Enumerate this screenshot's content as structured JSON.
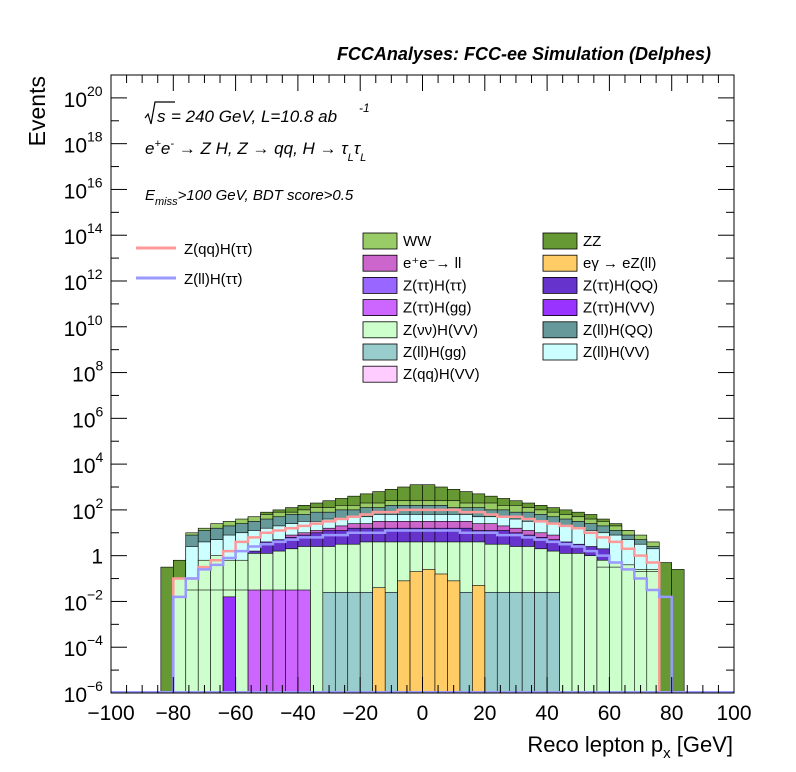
{
  "header": {
    "title": "FCCAnalyses: FCC-ee Simulation (Delphes)"
  },
  "chart_data": {
    "type": "histogram",
    "title": "FCCAnalyses: FCC-ee Simulation (Delphes)",
    "xlabel": "Reco lepton p",
    "xlabel_sub": "x",
    "xlabel_unit": "[GeV]",
    "ylabel": "Events",
    "xlim": [
      -100,
      100
    ],
    "ylim_log10": [
      -6,
      21
    ],
    "y_scale": "log",
    "x_ticks": [
      "−100",
      "−80",
      "−60",
      "−40",
      "−20",
      "0",
      "20",
      "40",
      "60",
      "80",
      "100"
    ],
    "y_ticks": [
      {
        "exp": -6,
        "base": "10",
        "sup": "−6"
      },
      {
        "exp": -4,
        "base": "10",
        "sup": "−4"
      },
      {
        "exp": -2,
        "base": "10",
        "sup": "−2"
      },
      {
        "exp": 0,
        "base": "1",
        "sup": ""
      },
      {
        "exp": 2,
        "base": "10",
        "sup": "2"
      },
      {
        "exp": 4,
        "base": "10",
        "sup": "4"
      },
      {
        "exp": 6,
        "base": "10",
        "sup": "6"
      },
      {
        "exp": 8,
        "base": "10",
        "sup": "8"
      },
      {
        "exp": 10,
        "base": "10",
        "sup": "10"
      },
      {
        "exp": 12,
        "base": "10",
        "sup": "12"
      },
      {
        "exp": 14,
        "base": "10",
        "sup": "14"
      },
      {
        "exp": 16,
        "base": "10",
        "sup": "16"
      },
      {
        "exp": 18,
        "base": "10",
        "sup": "18"
      },
      {
        "exp": 20,
        "base": "10",
        "sup": "20"
      }
    ],
    "annotations": {
      "energy": "= 240 GeV, L=10.8 ab",
      "energy_sup": "-1",
      "process_parts": [
        "e",
        "+",
        "e",
        "-",
        " → Z H, Z  → qq, H  → τ",
        "L",
        "τ",
        "L"
      ],
      "cut_parts": [
        "E",
        "miss",
        ">100 GeV, BDT score>0.5"
      ]
    },
    "bin_width": 4,
    "x_bins": [
      -84,
      -80,
      -76,
      -72,
      -68,
      -64,
      -60,
      -56,
      -52,
      -48,
      -44,
      -40,
      -36,
      -32,
      -28,
      -24,
      -20,
      -16,
      -12,
      -8,
      -4,
      0,
      4,
      8,
      12,
      16,
      20,
      24,
      28,
      32,
      36,
      40,
      44,
      48,
      52,
      56,
      60,
      64,
      68,
      72,
      76,
      80,
      84
    ],
    "stack_log10": [
      {
        "name": "Z(qq)H(VV)",
        "color": "#ffccff",
        "values": [
          -7,
          -7,
          -7,
          -7,
          -7,
          -7,
          -7,
          -7,
          -7,
          -7,
          -7,
          -7,
          -7,
          -7,
          -7,
          -7,
          -7,
          -7,
          -7,
          -7,
          -7,
          -7,
          -7,
          -7,
          -7,
          -7,
          -7,
          -7,
          -7,
          -7,
          -7,
          -7,
          -7,
          -7,
          -7,
          -7,
          -7,
          -7,
          -7,
          -1.8,
          -7,
          -7
        ]
      },
      {
        "name": "Z(ll)H(gg)",
        "color": "#99cccc",
        "values": [
          -7,
          -7,
          -7,
          -7,
          -7,
          -7,
          -7,
          -7,
          -7,
          -7,
          -7,
          -7,
          -7,
          -1.6,
          -1.6,
          -1.6,
          -1.6,
          -1.6,
          -1.6,
          -1.6,
          -1.6,
          -1.6,
          -1.6,
          -1.6,
          -1.6,
          -1.6,
          -1.6,
          -1.6,
          -1.6,
          -1.6,
          -1.6,
          -1.6,
          -7,
          -7,
          -7,
          -7,
          -7,
          -7,
          -7,
          -7,
          -7,
          -7
        ]
      },
      {
        "name": "eγ → eZ(ll)",
        "color": "#ffcc66",
        "values": [
          -7,
          -7,
          -7,
          -7,
          -7,
          -7,
          -7,
          -7,
          -7,
          -7,
          -7,
          -7,
          -7,
          -7,
          -7,
          -7,
          -7,
          -1.4,
          -7,
          -1.1,
          -0.7,
          -0.6,
          -0.8,
          -1.1,
          -7,
          -1.3,
          -7,
          -7,
          -7,
          -7,
          -7,
          -7,
          -7,
          -7,
          -7,
          -7,
          -7,
          -7,
          -7,
          -7,
          -7,
          -7
        ]
      },
      {
        "name": "Z(νν)H(VV)",
        "color": "#ccffcc",
        "values": [
          -7,
          -7,
          -1.5,
          -1.5,
          -1.5,
          -1.5,
          -1.5,
          -7,
          -7,
          -7,
          -7,
          -7,
          -7,
          -7,
          -7,
          -7,
          -7,
          -7,
          -7,
          -7,
          -7,
          -7,
          -7,
          -7,
          -7,
          -7,
          -7,
          -7,
          -7,
          -7,
          -7,
          -7,
          -7,
          -7,
          -7,
          -0.5,
          -0.5,
          -0.6,
          -0.7,
          -0.7,
          -7,
          -7
        ]
      },
      {
        "name": "Z(ττ)H(VV)",
        "color": "#9933ff",
        "values": [
          -7,
          -7,
          -7,
          -7,
          -7,
          -1.8,
          -7,
          -7,
          -7,
          -7,
          -7,
          -7,
          -7,
          -7,
          -7,
          -7,
          -7,
          -7,
          -7,
          -7,
          -7,
          -7,
          -7,
          -7,
          -7,
          -7,
          -7,
          -7,
          -7,
          -7,
          -7,
          -7,
          -7,
          -7,
          -7,
          -7,
          -7,
          -7,
          -7,
          -7,
          -7,
          -7
        ]
      },
      {
        "name": "Z(ττ)H(gg)",
        "color": "#cc66ff",
        "values": [
          -7,
          -7,
          -7,
          -7,
          -7,
          -7,
          -7,
          -1.5,
          -1.5,
          -1.5,
          -1.5,
          -1.5,
          -7,
          -7,
          -7,
          -7,
          -7,
          -7,
          -7,
          -7,
          -7,
          -7,
          -7,
          -7,
          -7,
          -7,
          -7,
          -7,
          -7,
          -7,
          -7,
          -7,
          -7,
          -7,
          -7,
          -7,
          -7,
          -7,
          -7,
          -7,
          -7,
          -7
        ]
      },
      {
        "name": "Z(ττ)H(QQ)",
        "color": "#6633cc",
        "values": [
          -7,
          -7,
          -7,
          -7,
          -7,
          -7,
          -7,
          -7,
          -7,
          -7,
          -7,
          -7,
          -7,
          -7,
          -7,
          -7,
          -7,
          -7,
          -7,
          -7,
          -7,
          -7,
          -7,
          -7,
          -7,
          -7,
          -7,
          -7,
          -7,
          -7,
          -7,
          -7,
          -7,
          -7,
          -7,
          -7,
          -7,
          -7,
          -7,
          -7,
          -7,
          -7
        ]
      },
      {
        "name": "e⁺e⁻→ ll",
        "color": "#cc66cc",
        "values": [
          -7,
          -7,
          -7,
          -7,
          -7,
          -7,
          -7,
          -7,
          -7,
          -7,
          -7,
          -7,
          -7,
          -7,
          -7,
          -7,
          -7,
          -7,
          -7,
          -7,
          -7,
          -7,
          -7,
          -7,
          -7,
          -7,
          -7,
          -7,
          -7,
          -7,
          -7,
          -7,
          -7,
          -7,
          -7,
          -7,
          -7,
          -7,
          -7,
          -7,
          -7,
          -7
        ]
      },
      {
        "name": "Z(ll)H(VV)",
        "color": "#ccffff",
        "values": [
          -7,
          -7,
          -7,
          -7,
          -7,
          -7,
          -7,
          -7,
          -7,
          -7,
          -7,
          -7,
          -7,
          -7,
          -7,
          -7,
          -7,
          -7,
          -7,
          -7,
          -7,
          -7,
          -7,
          -7,
          -7,
          -7,
          -7,
          -7,
          -7,
          -7,
          -7,
          -7,
          -7,
          -7,
          -7,
          -7,
          -7,
          -7,
          -7,
          -7,
          -7,
          -7
        ]
      },
      {
        "name": "Z(ττ)H(ττ)",
        "color": "#9966ff",
        "values": [
          -7,
          -7,
          -7,
          -7,
          -7,
          -7,
          -7,
          -7,
          -7,
          -7,
          -7,
          -7,
          -7,
          -7,
          -7,
          -7,
          -7,
          -7,
          -7,
          -7,
          -7,
          -7,
          -7,
          -7,
          -7,
          -7,
          -7,
          -7,
          -7,
          -7,
          -7,
          -7,
          -7,
          -7,
          -7,
          -7,
          -7,
          -7,
          -7,
          -7,
          -7,
          -7
        ]
      },
      {
        "name": "Z(ll)H(QQ)",
        "color": "#669999",
        "values": [
          -7,
          -7,
          -7,
          -7,
          -7,
          -7,
          -7,
          -7,
          -7,
          -7,
          -7,
          -7,
          -7,
          -7,
          -7,
          -7,
          -7,
          -7,
          -7,
          -7,
          -7,
          -7,
          -7,
          -7,
          -7,
          -7,
          -7,
          -7,
          -7,
          -7,
          -7,
          -7,
          -7,
          -7,
          -7,
          -7,
          -7,
          -7,
          -7,
          -7,
          -7,
          -7
        ]
      },
      {
        "name": "WW",
        "color": "#99cc66",
        "values": [
          -7,
          -7,
          -7,
          -7,
          -7,
          -7,
          -7,
          -7,
          -7,
          -7,
          -7,
          -7,
          -7,
          -7,
          -7,
          -7,
          -7,
          -7,
          -7,
          -7,
          -7,
          -7,
          -7,
          -7,
          -7,
          -7,
          -7,
          -7,
          -7,
          -7,
          -7,
          -7,
          -7,
          -7,
          -7,
          -7,
          -7,
          -7,
          -7,
          -7,
          -7,
          -7
        ]
      },
      {
        "name": "ZZ",
        "color": "#669933",
        "values": [
          -7,
          -7,
          -7,
          -7,
          -7,
          -7,
          -7,
          -7,
          -7,
          -7,
          -7,
          -7,
          -7,
          -7,
          -7,
          -7,
          -7,
          -7,
          -7,
          -7,
          -7,
          -7,
          -7,
          -7,
          -7,
          -7,
          -7,
          -7,
          -7,
          -7,
          -7,
          -7,
          -7,
          -7,
          -7,
          -7,
          -7,
          -7,
          -7,
          -7,
          -7,
          -7
        ]
      }
    ],
    "stack_top_log10": [
      {
        "name": "Z(νν)H(VV)",
        "values": [
          -7,
          -1.0,
          -1.0,
          -0.2,
          0.0,
          -0.2,
          -0.2,
          0.1,
          0.1,
          0.2,
          0.3,
          0.4,
          0.4,
          0.4,
          0.5,
          0.5,
          0.6,
          0.6,
          0.6,
          0.6,
          0.6,
          0.6,
          0.6,
          0.6,
          0.6,
          0.6,
          0.5,
          0.5,
          0.4,
          0.4,
          0.3,
          0.2,
          0.1,
          0.1,
          0.0,
          -0.2,
          -0.3,
          -0.4,
          -0.6,
          -0.6,
          -7,
          -7
        ]
      },
      {
        "name": "Z(ττ)H(QQ)",
        "values": [
          -7,
          -7,
          -7,
          -7,
          -7,
          -7,
          -7,
          0.2,
          0.6,
          0.7,
          0.8,
          0.9,
          1.0,
          1.1,
          1.1,
          1.2,
          1.2,
          1.2,
          1.2,
          1.2,
          1.2,
          1.2,
          1.2,
          1.2,
          1.2,
          1.1,
          1.1,
          1.1,
          1.0,
          0.9,
          0.8,
          0.7,
          0.6,
          0.5,
          0.4,
          0.3,
          -7,
          -7,
          -7,
          -7,
          -7,
          -7
        ]
      },
      {
        "name": "e⁺e⁻→ ll",
        "values": [
          -7,
          -7,
          -7,
          -7,
          -7,
          -7,
          -7,
          -7,
          -7,
          -7,
          0.9,
          1.0,
          1.1,
          1.2,
          1.3,
          1.4,
          1.4,
          1.5,
          1.5,
          1.5,
          1.5,
          1.5,
          1.5,
          1.5,
          1.5,
          1.4,
          1.4,
          1.3,
          1.2,
          1.1,
          1.0,
          0.9,
          -7,
          -7,
          -7,
          -7,
          -7,
          -7,
          -7,
          -7,
          -7,
          -7
        ]
      },
      {
        "name": "Z(ll)H(VV)",
        "values": [
          -7,
          -7,
          0.4,
          0.6,
          0.7,
          0.9,
          1.0,
          1.1,
          1.2,
          1.3,
          1.4,
          1.5,
          1.5,
          1.6,
          1.6,
          1.7,
          1.7,
          1.8,
          1.8,
          1.8,
          1.8,
          1.8,
          1.8,
          1.8,
          1.8,
          1.7,
          1.7,
          1.7,
          1.6,
          1.5,
          1.5,
          1.4,
          1.3,
          1.2,
          1.1,
          1.0,
          0.9,
          0.7,
          0.5,
          0.3,
          -7,
          -7
        ]
      },
      {
        "name": "Z(ll)H(QQ)",
        "values": [
          -7,
          -7,
          0.9,
          1.1,
          1.2,
          1.3,
          1.4,
          1.5,
          1.6,
          1.7,
          1.8,
          1.8,
          1.9,
          1.9,
          2.0,
          2.0,
          2.1,
          2.1,
          2.2,
          2.2,
          2.2,
          2.2,
          2.2,
          2.1,
          2.1,
          2.1,
          2.0,
          2.0,
          1.9,
          1.9,
          1.8,
          1.7,
          1.6,
          1.5,
          1.4,
          1.3,
          1.1,
          0.9,
          0.7,
          0.4,
          -7,
          -7
        ]
      },
      {
        "name": "WW",
        "values": [
          -7,
          -7,
          1.0,
          1.2,
          1.4,
          1.5,
          1.6,
          1.7,
          1.8,
          1.9,
          1.9,
          2.0,
          2.1,
          2.1,
          2.2,
          2.2,
          2.3,
          2.3,
          2.4,
          2.4,
          2.4,
          2.4,
          2.4,
          2.4,
          2.3,
          2.3,
          2.3,
          2.2,
          2.2,
          2.1,
          2.0,
          1.9,
          1.8,
          1.7,
          1.6,
          1.5,
          1.3,
          1.1,
          0.9,
          0.6,
          -7,
          -7
        ]
      },
      {
        "name": "ZZ",
        "values": [
          -0.5,
          -0.2,
          0.4,
          0.7,
          1.1,
          1.3,
          1.5,
          1.7,
          1.9,
          2.0,
          2.1,
          2.2,
          2.3,
          2.4,
          2.5,
          2.6,
          2.7,
          2.8,
          2.9,
          3.0,
          3.1,
          3.1,
          3.0,
          2.9,
          2.8,
          2.7,
          2.6,
          2.5,
          2.4,
          2.3,
          2.2,
          2.1,
          2.0,
          1.9,
          1.8,
          1.6,
          1.4,
          1.1,
          0.7,
          0.2,
          -0.3,
          -0.6
        ]
      }
    ],
    "signal_lines": [
      {
        "name": "Z(qq)H(ττ)",
        "color": "#ff9999",
        "values": [
          -7,
          -1.0,
          -1.0,
          -0.5,
          -0.2,
          0.2,
          0.6,
          0.8,
          1.0,
          1.1,
          1.2,
          1.3,
          1.4,
          1.5,
          1.6,
          1.7,
          1.8,
          1.9,
          1.9,
          2.0,
          2.0,
          2.0,
          2.0,
          2.0,
          1.9,
          1.9,
          1.8,
          1.7,
          1.7,
          1.6,
          1.5,
          1.4,
          1.3,
          1.2,
          1.0,
          0.8,
          0.6,
          0.3,
          0.0,
          -0.3,
          -6.5,
          -7
        ]
      },
      {
        "name": "Z(ll)H(ττ)",
        "color": "#9999ff",
        "values": [
          -7,
          -1.8,
          -1.0,
          -0.6,
          -0.4,
          -0.1,
          0.2,
          0.4,
          0.5,
          0.6,
          0.7,
          0.8,
          0.8,
          0.9,
          0.9,
          1.0,
          1.0,
          1.0,
          1.1,
          1.1,
          1.1,
          1.1,
          1.1,
          1.1,
          1.0,
          1.0,
          1.0,
          0.9,
          0.9,
          0.8,
          0.7,
          0.6,
          0.5,
          0.4,
          0.2,
          0.0,
          -0.3,
          -0.6,
          -1.0,
          -1.5,
          -1.8,
          -7
        ]
      }
    ],
    "legend_lines": [
      {
        "label": "Z(qq)H(ττ)",
        "color": "#ff9999"
      },
      {
        "label": "Z(ll)H(ττ)",
        "color": "#9999ff"
      }
    ],
    "legend_fill": [
      {
        "label": "WW",
        "color": "#99cc66"
      },
      {
        "label": "ZZ",
        "color": "#669933"
      },
      {
        "label": "e⁺e⁻→ ll",
        "color": "#cc66cc"
      },
      {
        "label": "eγ → eZ(ll)",
        "color": "#ffcc66"
      },
      {
        "label": "Z(ττ)H(ττ)",
        "color": "#9966ff"
      },
      {
        "label": "Z(ττ)H(QQ)",
        "color": "#6633cc"
      },
      {
        "label": "Z(ττ)H(gg)",
        "color": "#cc66ff"
      },
      {
        "label": "Z(ττ)H(VV)",
        "color": "#9933ff"
      },
      {
        "label": "Z(νν)H(VV)",
        "color": "#ccffcc"
      },
      {
        "label": "Z(ll)H(QQ)",
        "color": "#669999"
      },
      {
        "label": "Z(ll)H(gg)",
        "color": "#99cccc"
      },
      {
        "label": "Z(ll)H(VV)",
        "color": "#ccffff"
      },
      {
        "label": "Z(qq)H(VV)",
        "color": "#ffccff"
      }
    ]
  }
}
